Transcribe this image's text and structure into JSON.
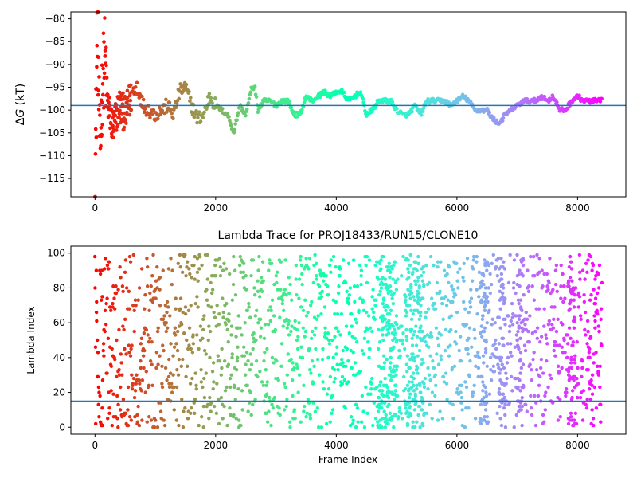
{
  "chart_data": [
    {
      "type": "scatter",
      "title": "",
      "xlabel": "",
      "ylabel": "ΔG (kT)",
      "ylabel_parts": [
        "Δ",
        "G",
        " (kT)"
      ],
      "xlim": [
        -400,
        8800
      ],
      "ylim": [
        -119,
        -78.5
      ],
      "xticks": [
        0,
        2000,
        4000,
        6000,
        8000
      ],
      "xtick_labels": [
        "0",
        "2000",
        "4000",
        "6000",
        "8000"
      ],
      "yticks": [
        -115,
        -110,
        -105,
        -100,
        -95,
        -90,
        -85,
        -80
      ],
      "ytick_labels": [
        "−115",
        "−110",
        "−105",
        "−100",
        "−95",
        "−90",
        "−85",
        "−80"
      ],
      "hline": {
        "y": -99,
        "color": "#1f77b4"
      },
      "colormap": "rainbow (red at frame 0 → violet at last frame)",
      "x_range": [
        0,
        8400
      ],
      "trace": [
        [
          0,
          -118
        ],
        [
          40,
          -80
        ],
        [
          80,
          -110
        ],
        [
          120,
          -95
        ],
        [
          160,
          -88
        ],
        [
          200,
          -98
        ],
        [
          300,
          -104
        ],
        [
          400,
          -99
        ],
        [
          500,
          -101
        ],
        [
          600,
          -97
        ],
        [
          700,
          -95
        ],
        [
          800,
          -99
        ],
        [
          900,
          -100
        ],
        [
          1000,
          -101
        ],
        [
          1100,
          -100
        ],
        [
          1200,
          -99
        ],
        [
          1300,
          -101
        ],
        [
          1400,
          -96
        ],
        [
          1500,
          -95
        ],
        [
          1600,
          -99
        ],
        [
          1700,
          -102
        ],
        [
          1800,
          -101
        ],
        [
          1900,
          -97
        ],
        [
          2000,
          -99
        ],
        [
          2100,
          -100
        ],
        [
          2200,
          -101
        ],
        [
          2300,
          -105
        ],
        [
          2400,
          -99
        ],
        [
          2500,
          -101
        ],
        [
          2600,
          -95
        ],
        [
          2650,
          -95
        ],
        [
          2700,
          -100
        ],
        [
          2800,
          -98
        ],
        [
          2900,
          -98
        ],
        [
          3000,
          -99
        ],
        [
          3100,
          -98
        ],
        [
          3200,
          -98
        ],
        [
          3300,
          -101
        ],
        [
          3400,
          -101
        ],
        [
          3500,
          -97
        ],
        [
          3600,
          -98
        ],
        [
          3700,
          -97
        ],
        [
          3800,
          -96
        ],
        [
          3900,
          -97
        ],
        [
          4000,
          -96
        ],
        [
          4100,
          -96
        ],
        [
          4200,
          -98
        ],
        [
          4300,
          -97
        ],
        [
          4400,
          -96
        ],
        [
          4500,
          -101
        ],
        [
          4600,
          -100
        ],
        [
          4700,
          -98
        ],
        [
          4800,
          -98
        ],
        [
          4900,
          -98
        ],
        [
          5000,
          -100
        ],
        [
          5100,
          -101
        ],
        [
          5200,
          -101
        ],
        [
          5300,
          -99
        ],
        [
          5400,
          -101
        ],
        [
          5500,
          -98
        ],
        [
          5600,
          -98
        ],
        [
          5700,
          -98
        ],
        [
          5800,
          -98
        ],
        [
          5900,
          -99
        ],
        [
          6000,
          -98
        ],
        [
          6100,
          -97
        ],
        [
          6200,
          -98
        ],
        [
          6300,
          -100
        ],
        [
          6400,
          -100
        ],
        [
          6500,
          -100
        ],
        [
          6600,
          -102
        ],
        [
          6700,
          -103
        ],
        [
          6800,
          -101
        ],
        [
          6900,
          -100
        ],
        [
          7000,
          -99
        ],
        [
          7100,
          -98
        ],
        [
          7200,
          -98
        ],
        [
          7300,
          -98
        ],
        [
          7400,
          -97
        ],
        [
          7500,
          -98
        ],
        [
          7600,
          -97
        ],
        [
          7700,
          -100
        ],
        [
          7800,
          -100
        ],
        [
          7900,
          -98
        ],
        [
          8000,
          -97
        ],
        [
          8100,
          -98
        ],
        [
          8200,
          -98
        ],
        [
          8300,
          -98
        ],
        [
          8400,
          -98
        ]
      ]
    },
    {
      "type": "scatter",
      "title": "Lambda Trace for PROJ18433/RUN15/CLONE10",
      "xlabel": "Frame Index",
      "ylabel": "Lambda Index",
      "xlim": [
        -400,
        8800
      ],
      "ylim": [
        -4,
        104
      ],
      "xticks": [
        0,
        2000,
        4000,
        6000,
        8000
      ],
      "xtick_labels": [
        "0",
        "2000",
        "4000",
        "6000",
        "8000"
      ],
      "yticks": [
        0,
        20,
        40,
        60,
        80,
        100
      ],
      "ytick_labels": [
        "0",
        "20",
        "40",
        "60",
        "80",
        "100"
      ],
      "hline": {
        "y": 15,
        "color": "#1f77b4"
      },
      "colormap": "rainbow (red at frame 0 → violet at last frame)",
      "x_range": [
        0,
        8400
      ],
      "lambda_range": [
        0,
        99
      ],
      "dense_column_ranges": [
        [
          4700,
          5000
        ],
        [
          5150,
          5450
        ],
        [
          6400,
          6500
        ],
        [
          6700,
          6800
        ],
        [
          7000,
          7100
        ],
        [
          7850,
          7950
        ]
      ]
    }
  ]
}
